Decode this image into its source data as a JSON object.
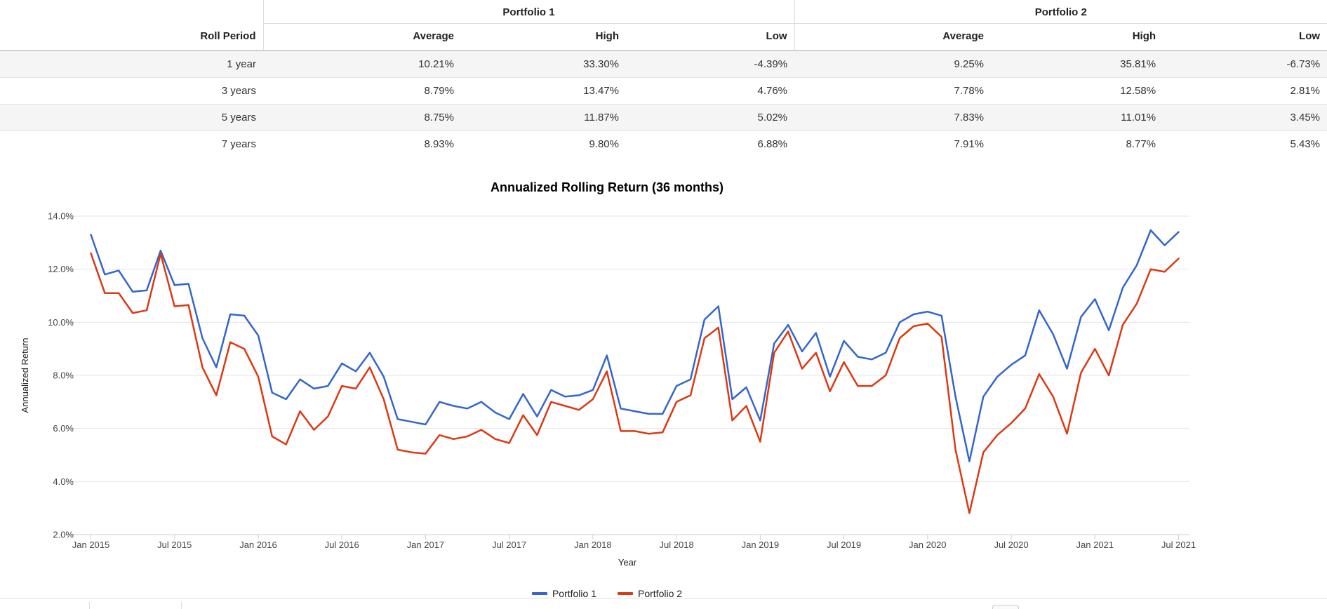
{
  "table": {
    "group_headers": [
      "Portfolio 1",
      "Portfolio 2"
    ],
    "col_headers": [
      "Roll Period",
      "Average",
      "High",
      "Low",
      "Average",
      "High",
      "Low"
    ],
    "rows": [
      {
        "period": "1 year",
        "values": [
          "10.21%",
          "33.30%",
          "-4.39%",
          "9.25%",
          "35.81%",
          "-6.73%"
        ]
      },
      {
        "period": "3 years",
        "values": [
          "8.79%",
          "13.47%",
          "4.76%",
          "7.78%",
          "12.58%",
          "2.81%"
        ]
      },
      {
        "period": "5 years",
        "values": [
          "8.75%",
          "11.87%",
          "5.02%",
          "7.83%",
          "11.01%",
          "3.45%"
        ]
      },
      {
        "period": "7 years",
        "values": [
          "8.93%",
          "9.80%",
          "6.88%",
          "7.91%",
          "8.77%",
          "5.43%"
        ]
      }
    ],
    "negative_color": "#ee0000"
  },
  "chart_data": {
    "type": "line",
    "title": "Annualized Rolling Return (36 months)",
    "xlabel": "Year",
    "ylabel": "Annualized Return",
    "x_start": "Jan 2015",
    "x_end": "Jul 2021",
    "x_step": "1 month",
    "ylim": [
      2.0,
      14.0
    ],
    "grid": "horizontal-only",
    "legend_position": "bottom",
    "y_tick_values": [
      14,
      12,
      10,
      8,
      6,
      4,
      2
    ],
    "y_tick_labels": [
      "14.0%",
      "12.0%",
      "10.0%",
      "8.0%",
      "6.0%",
      "4.0%",
      "2.0%"
    ],
    "x_ticks": [
      {
        "m": 0,
        "label": "Jan 2015"
      },
      {
        "m": 6,
        "label": "Jul 2015"
      },
      {
        "m": 12,
        "label": "Jan 2016"
      },
      {
        "m": 18,
        "label": "Jul 2016"
      },
      {
        "m": 24,
        "label": "Jan 2017"
      },
      {
        "m": 30,
        "label": "Jul 2017"
      },
      {
        "m": 36,
        "label": "Jan 2018"
      },
      {
        "m": 42,
        "label": "Jul 2018"
      },
      {
        "m": 48,
        "label": "Jan 2019"
      },
      {
        "m": 54,
        "label": "Jul 2019"
      },
      {
        "m": 60,
        "label": "Jan 2020"
      },
      {
        "m": 66,
        "label": "Jul 2020"
      },
      {
        "m": 72,
        "label": "Jan 2021"
      },
      {
        "m": 78,
        "label": "Jul 2021"
      }
    ],
    "series": [
      {
        "name": "Portfolio 1",
        "color": "#3366cc",
        "values": [
          13.3,
          11.8,
          11.95,
          11.15,
          11.2,
          12.7,
          11.4,
          11.45,
          9.4,
          8.3,
          10.3,
          10.25,
          9.5,
          7.35,
          7.1,
          7.85,
          7.5,
          7.6,
          8.45,
          8.15,
          8.85,
          7.95,
          6.35,
          6.25,
          6.15,
          7.0,
          6.85,
          6.75,
          7.0,
          6.6,
          6.35,
          7.3,
          6.45,
          7.45,
          7.2,
          7.25,
          7.45,
          8.75,
          6.75,
          6.65,
          6.55,
          6.55,
          7.6,
          7.85,
          10.1,
          10.6,
          7.1,
          7.55,
          6.3,
          9.2,
          9.9,
          8.9,
          9.6,
          7.95,
          9.3,
          8.7,
          8.6,
          8.85,
          10.0,
          10.3,
          10.4,
          10.25,
          7.2,
          4.76,
          7.2,
          7.95,
          8.4,
          8.75,
          10.45,
          9.55,
          8.25,
          10.2,
          10.87,
          9.7,
          11.3,
          12.15,
          13.47,
          12.9,
          13.4
        ]
      },
      {
        "name": "Portfolio 2",
        "color": "#dc3912",
        "values": [
          12.6,
          11.1,
          11.1,
          10.35,
          10.45,
          12.58,
          10.6,
          10.65,
          8.3,
          7.25,
          9.25,
          9.0,
          7.95,
          5.7,
          5.4,
          6.65,
          5.95,
          6.45,
          7.6,
          7.5,
          8.3,
          7.1,
          5.2,
          5.1,
          5.05,
          5.75,
          5.6,
          5.7,
          5.95,
          5.6,
          5.45,
          6.5,
          5.75,
          7.0,
          6.85,
          6.7,
          7.1,
          8.15,
          5.9,
          5.9,
          5.8,
          5.85,
          7.0,
          7.25,
          9.4,
          9.8,
          6.3,
          6.85,
          5.5,
          8.85,
          9.65,
          8.25,
          8.85,
          7.4,
          8.5,
          7.6,
          7.6,
          8.0,
          9.4,
          9.85,
          9.95,
          9.45,
          5.2,
          2.81,
          5.1,
          5.75,
          6.2,
          6.75,
          8.05,
          7.2,
          5.8,
          8.1,
          9.0,
          8.0,
          9.9,
          10.7,
          12.0,
          11.9,
          12.4
        ]
      }
    ]
  }
}
